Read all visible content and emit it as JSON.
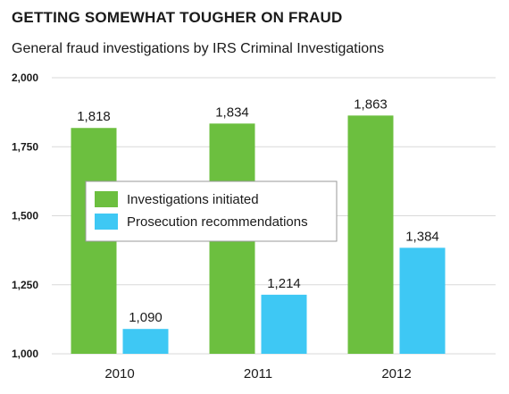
{
  "chart_data": {
    "type": "bar",
    "title": "GETTING SOMEWHAT TOUGHER ON FRAUD",
    "subtitle": "General fraud investigations by IRS Criminal Investigations",
    "xlabel": "",
    "ylabel": "",
    "categories": [
      "2010",
      "2011",
      "2012"
    ],
    "series": [
      {
        "name": "Investigations initiated",
        "values": [
          1818,
          1834,
          1863
        ],
        "color": "#6cbf3f"
      },
      {
        "name": "Prosecution recommendations",
        "values": [
          1090,
          1214,
          1384
        ],
        "color": "#3ec8f4"
      }
    ],
    "ylim": [
      1000,
      2000
    ],
    "yticks": [
      1000,
      1250,
      1500,
      1750,
      2000
    ],
    "ytick_labels": [
      "1,000",
      "1,250",
      "1,500",
      "1,750",
      "2,000"
    ],
    "data_labels": [
      [
        "1,818",
        "1,834",
        "1,863"
      ],
      [
        "1,090",
        "1,214",
        "1,384"
      ]
    ],
    "grid": true,
    "legend_position": "center-left",
    "grid_color": "#d9d9d9"
  }
}
